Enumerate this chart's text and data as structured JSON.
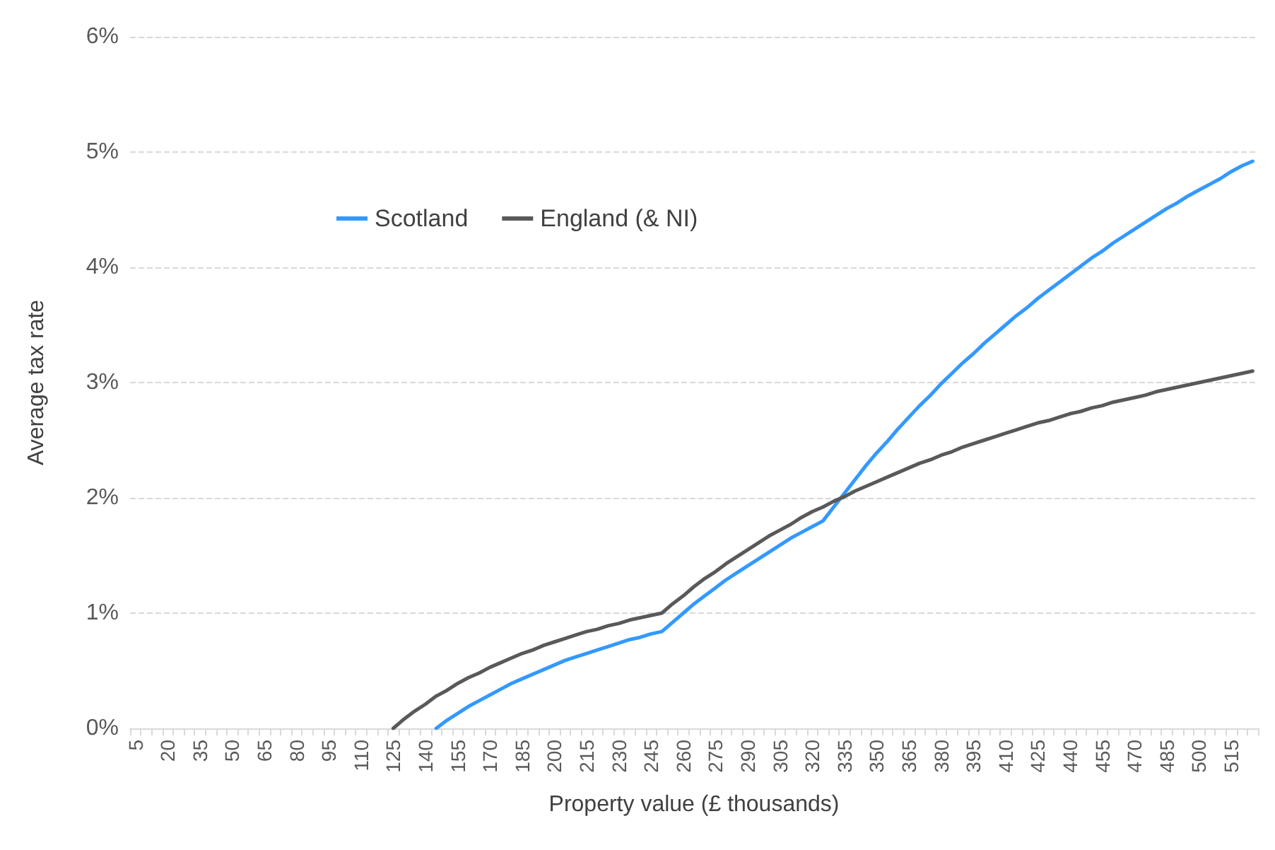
{
  "chart_data": {
    "type": "line",
    "xlabel": "Property value (£ thousands)",
    "ylabel": "Average tax rate",
    "categories": [
      "5",
      null,
      null,
      "20",
      null,
      null,
      "35",
      null,
      null,
      "50",
      null,
      null,
      "65",
      null,
      null,
      "80",
      null,
      null,
      "95",
      null,
      null,
      "110",
      null,
      null,
      "125",
      null,
      null,
      "140",
      null,
      null,
      "155",
      null,
      null,
      "170",
      null,
      null,
      "185",
      null,
      null,
      "200",
      null,
      null,
      "215",
      null,
      null,
      "230",
      null,
      null,
      "245",
      null,
      null,
      "260",
      null,
      null,
      "275",
      null,
      null,
      "290",
      null,
      null,
      "305",
      null,
      null,
      "320",
      null,
      null,
      "335",
      null,
      null,
      "350",
      null,
      null,
      "365",
      null,
      null,
      "380",
      null,
      null,
      "395",
      null,
      null,
      "410",
      null,
      null,
      "425",
      null,
      null,
      "440",
      null,
      null,
      "455",
      null,
      null,
      "470",
      null,
      null,
      "485",
      null,
      null,
      "500",
      null,
      null,
      "515",
      null,
      null
    ],
    "series": [
      {
        "name": "Scotland",
        "color": "#3399ff",
        "values": [
          null,
          null,
          null,
          null,
          null,
          null,
          null,
          null,
          null,
          null,
          null,
          null,
          null,
          null,
          null,
          null,
          null,
          null,
          null,
          null,
          null,
          null,
          null,
          null,
          null,
          null,
          null,
          null,
          0,
          0.07,
          0.13,
          0.19,
          0.24,
          0.29,
          0.34,
          0.39,
          0.43,
          0.47,
          0.51,
          0.55,
          0.59,
          0.62,
          0.65,
          0.68,
          0.71,
          0.74,
          0.77,
          0.79,
          0.82,
          0.84,
          0.92,
          1.0,
          1.08,
          1.15,
          1.22,
          1.29,
          1.35,
          1.41,
          1.47,
          1.53,
          1.59,
          1.65,
          1.7,
          1.75,
          1.8,
          1.92,
          2.04,
          2.16,
          2.28,
          2.39,
          2.49,
          2.6,
          2.7,
          2.8,
          2.89,
          2.99,
          3.08,
          3.17,
          3.25,
          3.34,
          3.42,
          3.5,
          3.58,
          3.65,
          3.73,
          3.8,
          3.87,
          3.94,
          4.01,
          4.08,
          4.14,
          4.21,
          4.27,
          4.33,
          4.39,
          4.45,
          4.51,
          4.56,
          4.62,
          4.67,
          4.72,
          4.77,
          4.83,
          4.88,
          4.92
        ]
      },
      {
        "name": "England (& NI)",
        "color": "#595959",
        "values": [
          null,
          null,
          null,
          null,
          null,
          null,
          null,
          null,
          null,
          null,
          null,
          null,
          null,
          null,
          null,
          null,
          null,
          null,
          null,
          null,
          null,
          null,
          null,
          null,
          0,
          0.08,
          0.15,
          0.21,
          0.28,
          0.33,
          0.39,
          0.44,
          0.48,
          0.53,
          0.57,
          0.61,
          0.65,
          0.68,
          0.72,
          0.75,
          0.78,
          0.81,
          0.84,
          0.86,
          0.89,
          0.91,
          0.94,
          0.96,
          0.98,
          1.0,
          1.08,
          1.15,
          1.23,
          1.3,
          1.36,
          1.43,
          1.49,
          1.55,
          1.61,
          1.67,
          1.72,
          1.77,
          1.83,
          1.88,
          1.92,
          1.97,
          2.01,
          2.06,
          2.1,
          2.14,
          2.18,
          2.22,
          2.26,
          2.3,
          2.33,
          2.37,
          2.4,
          2.44,
          2.47,
          2.5,
          2.53,
          2.56,
          2.59,
          2.62,
          2.65,
          2.67,
          2.7,
          2.73,
          2.75,
          2.78,
          2.8,
          2.83,
          2.85,
          2.87,
          2.89,
          2.92,
          2.94,
          2.96,
          2.98,
          3.0,
          3.02,
          3.04,
          3.06,
          3.08,
          3.1
        ]
      }
    ],
    "ylim": [
      0,
      6
    ],
    "yticks": [
      {
        "value": 0,
        "label": "0%"
      },
      {
        "value": 1,
        "label": "1%"
      },
      {
        "value": 2,
        "label": "2%"
      },
      {
        "value": 3,
        "label": "3%"
      },
      {
        "value": 4,
        "label": "4%"
      },
      {
        "value": 5,
        "label": "5%"
      },
      {
        "value": 6,
        "label": "6%"
      }
    ],
    "grid": "y",
    "legend": "top left",
    "marker": "none",
    "line_style": "solid"
  }
}
